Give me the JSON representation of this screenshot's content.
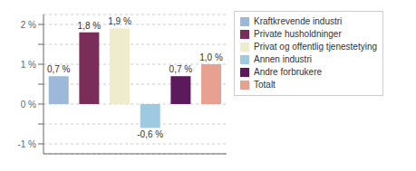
{
  "chart_data": {
    "type": "bar",
    "categories": [
      "Kraftkrevende industri",
      "Private husholdninger",
      "Privat og offentlig tjenestetying",
      "Annen industri",
      "Andre forbrukere",
      "Totalt"
    ],
    "values": [
      0.7,
      1.8,
      1.9,
      -0.6,
      0.7,
      1.0
    ],
    "value_labels": [
      "0,7 %",
      "1,8 %",
      "1,9 %",
      "-0,6 %",
      "0,7 %",
      "1,0 %"
    ],
    "data_labels": true,
    "colors": [
      "#9db8d9",
      "#7b2d5a",
      "#eeeccc",
      "#9ecae1",
      "#5c1a5c",
      "#e8a090"
    ],
    "ylim": [
      -1.25,
      2.25
    ],
    "yticks": [
      {
        "value": -1.0,
        "label": "-1 %"
      },
      {
        "value": -0.5,
        "label": null
      },
      {
        "value": 0.0,
        "label": "0 %"
      },
      {
        "value": 0.5,
        "label": null
      },
      {
        "value": 1.0,
        "label": "1 %"
      },
      {
        "value": 1.5,
        "label": null
      },
      {
        "value": 2.0,
        "label": "2 %"
      }
    ],
    "grid": true,
    "legend": "right",
    "tick_labels": "y"
  }
}
